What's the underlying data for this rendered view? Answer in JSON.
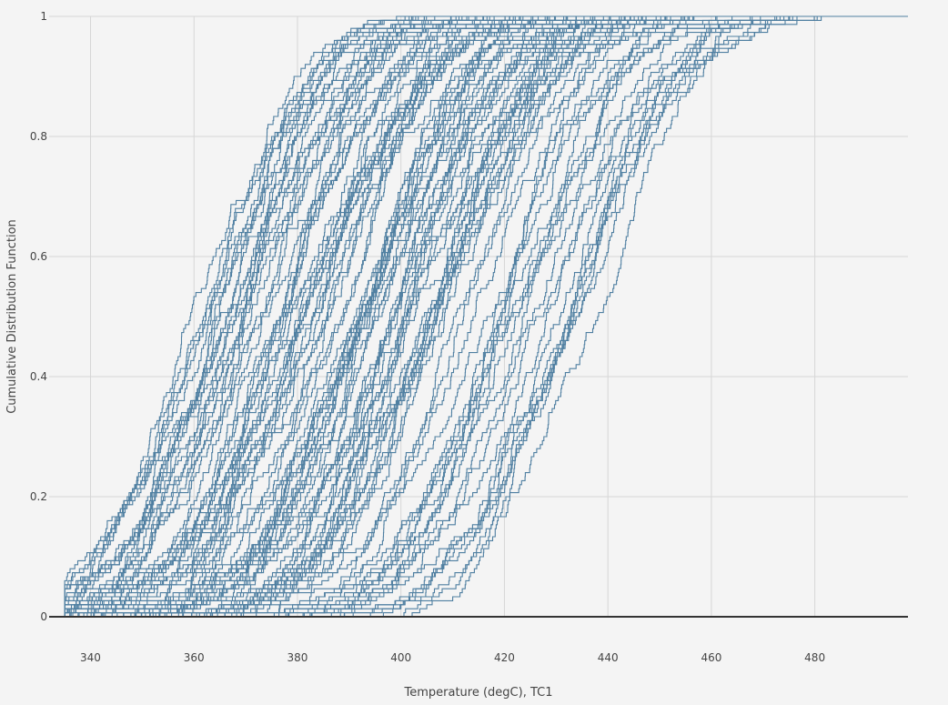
{
  "chart_data": {
    "type": "line",
    "title": "",
    "xlabel": "Temperature (degC), TC1",
    "ylabel": "Cumulative Distribution Function",
    "xlim": [
      332,
      498
    ],
    "ylim": [
      0,
      1
    ],
    "x_ticks": [
      340,
      360,
      380,
      400,
      420,
      440,
      460,
      480
    ],
    "x_tick_labels": [
      "340",
      "360",
      "380",
      "400",
      "420",
      "440",
      "460",
      "480"
    ],
    "y_ticks": [
      0,
      0.2,
      0.4,
      0.6,
      0.8,
      1
    ],
    "y_tick_labels": [
      "0",
      "0.2",
      "0.4",
      "0.6",
      "0.8",
      "1"
    ],
    "grid": true,
    "legend": "none",
    "line_color": "#4f7fa1",
    "series_description": "Approximately 100 overlapping empirical CDF step curves; each rises from 0 to 1 over a band of about 70-80 degC",
    "series_count": 100,
    "series_envelope": {
      "median_temperature_min": 362,
      "median_temperature_max": 438,
      "earliest_start_temperature": 335,
      "latest_end_temperature": 497
    }
  }
}
